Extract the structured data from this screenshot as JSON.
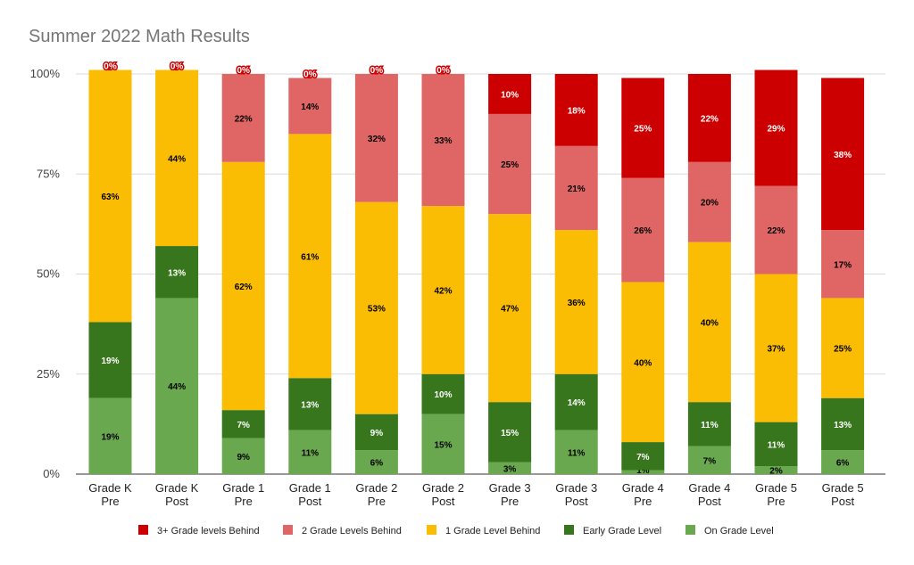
{
  "chart_data": {
    "type": "bar",
    "stacked": true,
    "title": "Summer 2022 Math Results",
    "xlabel": "",
    "ylabel": "",
    "ylim": [
      0,
      100
    ],
    "yticks": [
      "0%",
      "25%",
      "50%",
      "75%",
      "100%"
    ],
    "grid": true,
    "legend_position": "bottom",
    "categories": [
      [
        "Grade K",
        "Pre"
      ],
      [
        "Grade K",
        "Post"
      ],
      [
        "Grade 1",
        "Pre"
      ],
      [
        "Grade 1",
        "Post"
      ],
      [
        "Grade 2",
        "Pre"
      ],
      [
        "Grade 2",
        "Post"
      ],
      [
        "Grade 3",
        "Pre"
      ],
      [
        "Grade 3",
        "Post"
      ],
      [
        "Grade 4",
        "Pre"
      ],
      [
        "Grade 4",
        "Post"
      ],
      [
        "Grade 5",
        "Pre"
      ],
      [
        "Grade 5",
        "Post"
      ]
    ],
    "series": [
      {
        "name": "On Grade Level",
        "color": "#6aa84f",
        "values": [
          19,
          44,
          9,
          11,
          6,
          15,
          3,
          11,
          1,
          7,
          2,
          6
        ],
        "labels": [
          "19%",
          "44%",
          "9%",
          "11%",
          "6%",
          "15%",
          "3%",
          "11%",
          "1%",
          "7%",
          "2%",
          "6%"
        ],
        "label_color": "#000000"
      },
      {
        "name": "Early Grade Level",
        "color": "#38761d",
        "values": [
          19,
          13,
          7,
          13,
          9,
          10,
          15,
          14,
          7,
          11,
          11,
          13
        ],
        "labels": [
          "19%",
          "13%",
          "7%",
          "13%",
          "9%",
          "10%",
          "15%",
          "14%",
          "7%",
          "11%",
          "11%",
          "13%"
        ],
        "label_color": "#ffffff"
      },
      {
        "name": "1 Grade Level Behind",
        "color": "#fbbc04",
        "values": [
          63,
          44,
          62,
          61,
          53,
          42,
          47,
          36,
          40,
          40,
          37,
          25
        ],
        "labels": [
          "63%",
          "44%",
          "62%",
          "61%",
          "53%",
          "42%",
          "47%",
          "36%",
          "40%",
          "40%",
          "37%",
          "25%"
        ],
        "label_color": "#000000"
      },
      {
        "name": "2 Grade Levels Behind",
        "color": "#e06666",
        "values": [
          0,
          0,
          22,
          14,
          32,
          33,
          25,
          21,
          26,
          20,
          22,
          17
        ],
        "labels": [
          "",
          "",
          "22%",
          "14%",
          "32%",
          "33%",
          "25%",
          "21%",
          "26%",
          "20%",
          "22%",
          "17%"
        ],
        "label_color": "#000000"
      },
      {
        "name": "3+ Grade levels Behind",
        "color": "#cc0000",
        "values": [
          0,
          0,
          0,
          0,
          0,
          0,
          10,
          18,
          25,
          22,
          29,
          38
        ],
        "labels": [
          "0%",
          "0%",
          "0%",
          "0%",
          "0%",
          "0%",
          "10%",
          "18%",
          "25%",
          "22%",
          "29%",
          "38%"
        ],
        "label_color": "#ffffff"
      }
    ],
    "legend_order": [
      "3+ Grade levels Behind",
      "2 Grade Levels Behind",
      "1 Grade Level Behind",
      "Early Grade Level",
      "On Grade Level"
    ]
  }
}
